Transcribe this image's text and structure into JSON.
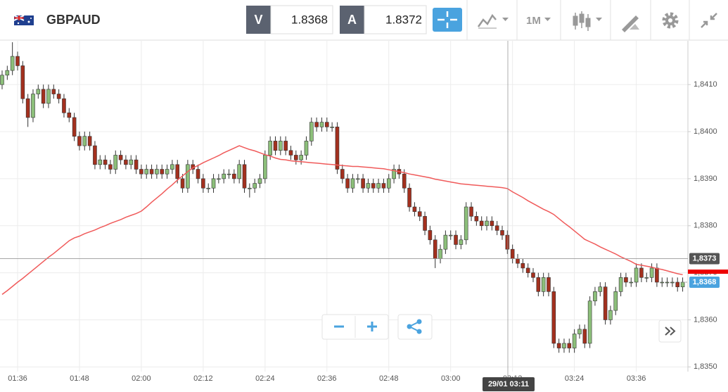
{
  "toolbar": {
    "symbol": "GBPAUD",
    "bid_label": "V",
    "bid": 1.8368,
    "ask_label": "A",
    "ask": 1.8372,
    "timeframe": "1M"
  },
  "chart_data": {
    "type": "candlestick",
    "categories": [
      null,
      null,
      null,
      "01:36",
      null,
      null,
      null,
      null,
      null,
      null,
      null,
      null,
      null,
      null,
      null,
      "01:48",
      null,
      null,
      null,
      null,
      null,
      null,
      null,
      null,
      null,
      null,
      null,
      "02:00",
      null,
      null,
      null,
      null,
      null,
      null,
      null,
      null,
      null,
      null,
      null,
      "02:12",
      null,
      null,
      null,
      null,
      null,
      null,
      null,
      null,
      null,
      null,
      null,
      "02:24",
      null,
      null,
      null,
      null,
      null,
      null,
      null,
      null,
      null,
      null,
      null,
      "02:36",
      null,
      null,
      null,
      null,
      null,
      null,
      null,
      null,
      null,
      null,
      null,
      "02:48",
      null,
      null,
      null,
      null,
      null,
      null,
      null,
      null,
      null,
      null,
      null,
      "03:00",
      null,
      null,
      null,
      null,
      null,
      null,
      null,
      null,
      null,
      null,
      null,
      "03:12",
      null,
      null,
      null,
      null,
      null,
      null,
      null,
      null,
      null,
      null,
      null,
      "03:24",
      null,
      null,
      null,
      null,
      null,
      null,
      null,
      null,
      null,
      null,
      null,
      "03:36",
      null,
      null,
      null,
      null,
      null,
      null,
      null,
      null,
      null
    ],
    "open": [
      1.841,
      1.8412,
      1.8413,
      1.8416,
      1.8414,
      1.8407,
      1.8403,
      1.8408,
      1.8409,
      1.8406,
      1.8409,
      1.8408,
      1.8407,
      1.8404,
      1.8403,
      1.8399,
      1.8397,
      1.8399,
      1.8397,
      1.8393,
      1.8394,
      1.8393,
      1.8392,
      1.8395,
      1.8394,
      1.8393,
      1.8394,
      1.8392,
      1.8391,
      1.8392,
      1.8391,
      1.8392,
      1.8391,
      1.8392,
      1.8393,
      1.839,
      1.8388,
      1.8393,
      1.8392,
      1.839,
      1.8388,
      1.8388,
      1.839,
      1.839,
      1.8391,
      1.8391,
      1.839,
      1.8393,
      1.8388,
      1.8388,
      1.8389,
      1.839,
      1.8395,
      1.8398,
      1.8396,
      1.8398,
      1.8396,
      1.8395,
      1.8394,
      1.8395,
      1.8398,
      1.8402,
      1.8401,
      1.8402,
      1.8401,
      1.8401,
      1.8392,
      1.839,
      1.8388,
      1.839,
      1.839,
      1.8388,
      1.8389,
      1.8388,
      1.8389,
      1.8388,
      1.839,
      1.8392,
      1.8391,
      1.8388,
      1.8384,
      1.8383,
      1.8382,
      1.8379,
      1.8377,
      1.8373,
      1.8375,
      1.8378,
      1.8378,
      1.8376,
      1.8377,
      1.8384,
      1.8382,
      1.8381,
      1.838,
      1.8381,
      1.838,
      1.8379,
      1.8378,
      1.8375,
      1.8373,
      1.8372,
      1.8371,
      1.837,
      1.8369,
      1.8366,
      1.8369,
      1.8366,
      1.8355,
      1.8354,
      1.8355,
      1.8354,
      1.8357,
      1.8358,
      1.8355,
      1.8364,
      1.8366,
      1.8367,
      1.836,
      1.8362,
      1.8366,
      1.8369,
      1.8368,
      1.8368,
      1.8371,
      1.8369,
      1.8369,
      1.8371,
      1.8368,
      1.8368,
      1.8368,
      1.8368,
      1.8367
    ],
    "high": [
      1.8413,
      1.8414,
      1.8419,
      1.8417,
      1.8415,
      1.8408,
      1.8409,
      1.841,
      1.841,
      1.841,
      1.841,
      1.8409,
      1.8408,
      1.8405,
      1.8404,
      1.84,
      1.84,
      1.84,
      1.8398,
      1.8395,
      1.8395,
      1.8394,
      1.8396,
      1.8396,
      1.8395,
      1.8395,
      1.8395,
      1.8393,
      1.8393,
      1.8393,
      1.8393,
      1.8393,
      1.8393,
      1.8394,
      1.8394,
      1.8391,
      1.8394,
      1.8394,
      1.8393,
      1.8391,
      1.8389,
      1.8391,
      1.8391,
      1.8392,
      1.8392,
      1.8392,
      1.8394,
      1.8394,
      1.8389,
      1.839,
      1.8391,
      1.8396,
      1.8399,
      1.8399,
      1.8399,
      1.8399,
      1.8397,
      1.8396,
      1.8396,
      1.8399,
      1.8403,
      1.8403,
      1.8403,
      1.8403,
      1.8402,
      1.8402,
      1.8393,
      1.8391,
      1.8391,
      1.8391,
      1.8391,
      1.839,
      1.839,
      1.839,
      1.839,
      1.8391,
      1.8393,
      1.8393,
      1.8392,
      1.8389,
      1.8385,
      1.8384,
      1.8383,
      1.838,
      1.8378,
      1.8376,
      1.8379,
      1.8379,
      1.8379,
      1.8378,
      1.8385,
      1.8385,
      1.8383,
      1.8382,
      1.8382,
      1.8382,
      1.8381,
      1.838,
      1.8379,
      1.8376,
      1.8374,
      1.8373,
      1.8372,
      1.8371,
      1.837,
      1.837,
      1.837,
      1.8367,
      1.8356,
      1.8356,
      1.8356,
      1.8358,
      1.8359,
      1.8359,
      1.8365,
      1.8367,
      1.8368,
      1.8368,
      1.8363,
      1.8367,
      1.837,
      1.837,
      1.8369,
      1.8372,
      1.8372,
      1.837,
      1.8372,
      1.8372,
      1.8369,
      1.8369,
      1.8369,
      1.8369,
      1.8369
    ],
    "low": [
      1.8409,
      1.8411,
      1.8412,
      1.8413,
      1.8406,
      1.8401,
      1.8402,
      1.8407,
      1.8405,
      1.8405,
      1.8407,
      1.8406,
      1.8403,
      1.8402,
      1.8398,
      1.8396,
      1.8396,
      1.8396,
      1.8392,
      1.8392,
      1.8392,
      1.8391,
      1.8391,
      1.8393,
      1.8392,
      1.8392,
      1.8391,
      1.839,
      1.839,
      1.839,
      1.839,
      1.839,
      1.839,
      1.8391,
      1.8389,
      1.8387,
      1.8387,
      1.8391,
      1.8389,
      1.8387,
      1.8387,
      1.8387,
      1.8389,
      1.8389,
      1.839,
      1.8389,
      1.8389,
      1.8387,
      1.8386,
      1.8387,
      1.8388,
      1.8389,
      1.8394,
      1.8395,
      1.8395,
      1.8395,
      1.8394,
      1.8393,
      1.8393,
      1.8394,
      1.8397,
      1.84,
      1.84,
      1.84,
      1.84,
      1.8391,
      1.8389,
      1.8387,
      1.8387,
      1.8389,
      1.8387,
      1.8387,
      1.8387,
      1.8387,
      1.8387,
      1.8387,
      1.8389,
      1.839,
      1.8387,
      1.8383,
      1.8382,
      1.8381,
      1.8378,
      1.8376,
      1.8371,
      1.8372,
      1.8374,
      1.8377,
      1.8375,
      1.8375,
      1.8376,
      1.8381,
      1.838,
      1.8379,
      1.8379,
      1.8379,
      1.8378,
      1.8377,
      1.8374,
      1.8372,
      1.8371,
      1.837,
      1.8369,
      1.8368,
      1.8365,
      1.8365,
      1.8365,
      1.8354,
      1.8353,
      1.8353,
      1.8353,
      1.8353,
      1.8356,
      1.8354,
      1.8354,
      1.8363,
      1.8365,
      1.8359,
      1.8359,
      1.8361,
      1.8365,
      1.8367,
      1.8367,
      1.8367,
      1.8368,
      1.8368,
      1.8368,
      1.8367,
      1.8367,
      1.8367,
      1.8367,
      1.8366,
      1.8366
    ],
    "close": [
      1.8412,
      1.8413,
      1.8416,
      1.8414,
      1.8407,
      1.8403,
      1.8408,
      1.8409,
      1.8406,
      1.8409,
      1.8408,
      1.8407,
      1.8404,
      1.8403,
      1.8399,
      1.8397,
      1.8399,
      1.8397,
      1.8393,
      1.8394,
      1.8393,
      1.8392,
      1.8395,
      1.8394,
      1.8393,
      1.8394,
      1.8392,
      1.8391,
      1.8392,
      1.8391,
      1.8392,
      1.8391,
      1.8392,
      1.8393,
      1.839,
      1.8388,
      1.8393,
      1.8392,
      1.839,
      1.8388,
      1.8388,
      1.839,
      1.839,
      1.8391,
      1.8391,
      1.839,
      1.8393,
      1.8388,
      1.8388,
      1.8389,
      1.839,
      1.8395,
      1.8398,
      1.8396,
      1.8398,
      1.8396,
      1.8395,
      1.8394,
      1.8395,
      1.8398,
      1.8402,
      1.8401,
      1.8402,
      1.8401,
      1.8401,
      1.8392,
      1.839,
      1.8388,
      1.839,
      1.839,
      1.8388,
      1.8389,
      1.8388,
      1.8389,
      1.8388,
      1.839,
      1.8392,
      1.8391,
      1.8388,
      1.8384,
      1.8383,
      1.8382,
      1.8379,
      1.8377,
      1.8373,
      1.8375,
      1.8378,
      1.8378,
      1.8376,
      1.8377,
      1.8384,
      1.8382,
      1.8381,
      1.838,
      1.8381,
      1.838,
      1.8379,
      1.8378,
      1.8375,
      1.8373,
      1.8372,
      1.8371,
      1.837,
      1.8369,
      1.8366,
      1.8369,
      1.8366,
      1.8355,
      1.8354,
      1.8355,
      1.8354,
      1.8357,
      1.8358,
      1.8355,
      1.8364,
      1.8366,
      1.8367,
      1.836,
      1.8362,
      1.8366,
      1.8369,
      1.8368,
      1.8368,
      1.8371,
      1.8369,
      1.8369,
      1.8371,
      1.8368,
      1.8368,
      1.8368,
      1.8368,
      1.8367,
      1.8368
    ],
    "up_color": "#8cbf7a",
    "down_color": "#a3301e",
    "moving_average": {
      "color": "#f05a5a",
      "values": [
        1.83654,
        1.83662,
        1.83671,
        1.8368,
        1.83688,
        1.83697,
        1.83706,
        1.83715,
        1.83724,
        1.83733,
        1.83741,
        1.8375,
        1.83759,
        1.83768,
        1.83774,
        1.83778,
        1.83783,
        1.83787,
        1.83791,
        1.83796,
        1.838,
        1.83805,
        1.83809,
        1.83813,
        1.83818,
        1.83822,
        1.83826,
        1.83831,
        1.8384,
        1.8385,
        1.83859,
        1.83868,
        1.83878,
        1.83887,
        1.83897,
        1.83906,
        1.83915,
        1.83923,
        1.83928,
        1.83934,
        1.83939,
        1.83944,
        1.83949,
        1.83955,
        1.8396,
        1.83965,
        1.8397,
        1.83966,
        1.83962,
        1.83959,
        1.83955,
        1.83951,
        1.83948,
        1.83944,
        1.83941,
        1.8394,
        1.83938,
        1.83937,
        1.83936,
        1.83935,
        1.83934,
        1.83933,
        1.83932,
        1.83931,
        1.8393,
        1.83929,
        1.83928,
        1.83927,
        1.83926,
        1.83926,
        1.83925,
        1.83924,
        1.83923,
        1.83922,
        1.83921,
        1.83919,
        1.83917,
        1.83915,
        1.83913,
        1.8391,
        1.83908,
        1.83906,
        1.83904,
        1.83902,
        1.83899,
        1.83897,
        1.83895,
        1.83893,
        1.83891,
        1.83889,
        1.83888,
        1.83887,
        1.83886,
        1.83885,
        1.83884,
        1.83883,
        1.83882,
        1.83881,
        1.83879,
        1.83872,
        1.83866,
        1.8386,
        1.83853,
        1.83847,
        1.83841,
        1.83835,
        1.8383,
        1.83824,
        1.83815,
        1.83806,
        1.83798,
        1.83789,
        1.8378,
        1.83771,
        1.83766,
        1.83761,
        1.83755,
        1.8375,
        1.83745,
        1.8374,
        1.83734,
        1.83729,
        1.83724,
        1.83718,
        1.83716,
        1.83714,
        1.83712,
        1.83709,
        1.83707,
        1.83704,
        1.83701,
        1.83698,
        1.83696
      ]
    },
    "ylim": [
      1.8349,
      1.84193
    ],
    "yticks": [
      {
        "value": 1.835,
        "label": "1,8350"
      },
      {
        "value": 1.836,
        "label": "1,8360"
      },
      {
        "value": 1.837,
        "label": "1,8370"
      },
      {
        "value": 1.838,
        "label": "1,8380"
      },
      {
        "value": 1.839,
        "label": "1,8390"
      },
      {
        "value": 1.84,
        "label": "1,8400"
      },
      {
        "value": 1.841,
        "label": "1,8410"
      }
    ],
    "grid": true,
    "crosshair": {
      "x_label": "29/01 03:11",
      "y": {
        "value": 1.8373,
        "label": "1,8373"
      }
    },
    "last_price": {
      "value": 1.8368,
      "label": "1,8368"
    }
  }
}
